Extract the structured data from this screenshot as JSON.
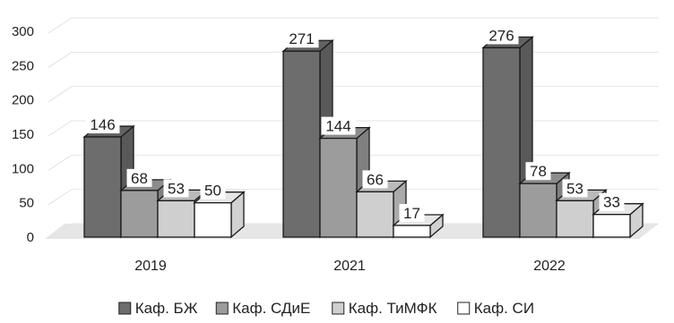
{
  "chart_data": {
    "type": "bar",
    "style": "3d-clustered-column",
    "title": "",
    "xlabel": "",
    "ylabel": "",
    "categories": [
      "2019",
      "2021",
      "2022"
    ],
    "series": [
      {
        "name": "Каф. БЖ",
        "values": [
          146,
          271,
          276
        ],
        "color": "#6d6d6d"
      },
      {
        "name": "Каф. СДиЕ",
        "values": [
          68,
          144,
          78
        ],
        "color": "#9c9c9c"
      },
      {
        "name": "Каф. ТиМФК",
        "values": [
          53,
          66,
          53
        ],
        "color": "#cfcfcf"
      },
      {
        "name": "Каф. СИ",
        "values": [
          50,
          17,
          33
        ],
        "color": "#ffffff"
      }
    ],
    "ylim": [
      0,
      300
    ],
    "yticks": [
      0,
      50,
      100,
      150,
      200,
      250,
      300
    ],
    "grid": true,
    "legend_position": "bottom"
  }
}
